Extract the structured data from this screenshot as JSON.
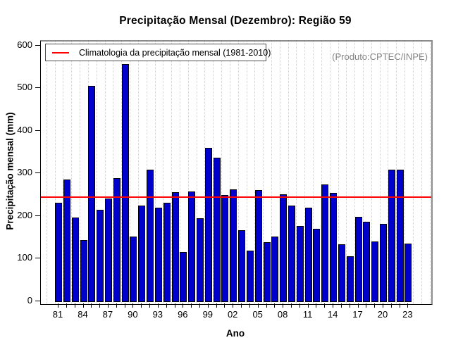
{
  "header": {
    "title": "Precipitação Mensal (Dezembro): Região 59"
  },
  "annotation": {
    "producer": "(Produto:CPTEC/INPE)"
  },
  "legend": {
    "climatology_label": "Climatologia da precipitação mensal (1981-2010)",
    "line_color": "#ff0000"
  },
  "chart_data": {
    "type": "bar",
    "title": "Precipitação Mensal (Dezembro): Região 59",
    "xlabel": "Ano",
    "ylabel": "Precipitação mensal (mm)",
    "ylim": [
      0,
      600
    ],
    "y_ticks": [
      0,
      100,
      200,
      300,
      400,
      500,
      600
    ],
    "x_tick_label_every": 3,
    "grid": "vertical-dotted",
    "legend_position": "top-left",
    "bar_color": "#0000CC",
    "bar_border_color": "#000000",
    "climatology_line": {
      "value": 246,
      "color": "#ff0000",
      "label": "Climatologia da precipitação mensal (1981-2010)"
    },
    "years": [
      1981,
      1982,
      1983,
      1984,
      1985,
      1986,
      1987,
      1988,
      1989,
      1990,
      1991,
      1992,
      1993,
      1994,
      1995,
      1996,
      1997,
      1998,
      1999,
      2000,
      2001,
      2002,
      2003,
      2004,
      2005,
      2006,
      2007,
      2008,
      2009,
      2010,
      2011,
      2012,
      2013,
      2014,
      2015,
      2016,
      2017,
      2018,
      2019,
      2020,
      2021,
      2022,
      2023
    ],
    "values": [
      233,
      288,
      198,
      145,
      507,
      217,
      242,
      290,
      558,
      153,
      227,
      310,
      222,
      232,
      258,
      118,
      259,
      196,
      362,
      339,
      251,
      264,
      168,
      120,
      263,
      141,
      153,
      253,
      227,
      179,
      221,
      171,
      276,
      256,
      136,
      108,
      200,
      189,
      142,
      183,
      310,
      311,
      137
    ]
  }
}
